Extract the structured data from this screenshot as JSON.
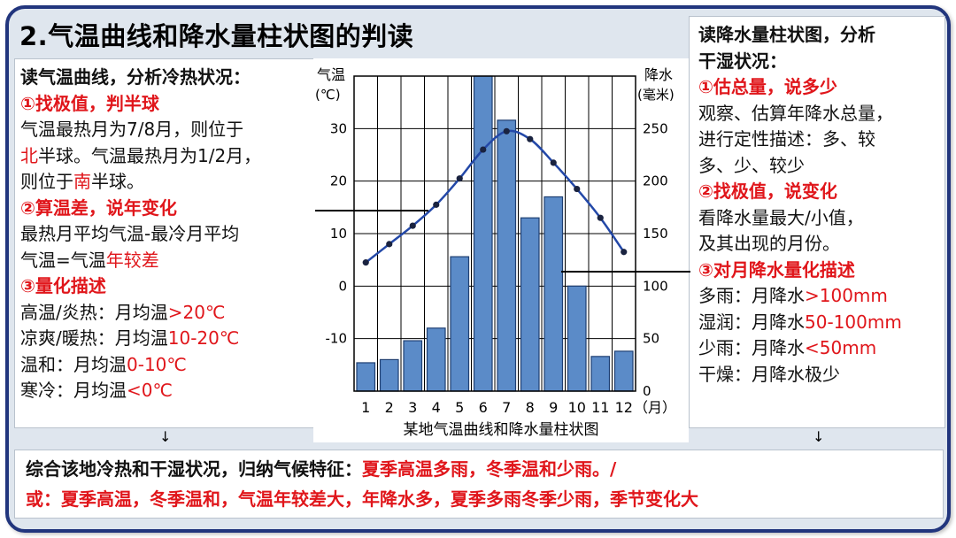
{
  "title": "2.气温曲线和降水量柱状图的判读",
  "left": {
    "heading": "读气温曲线，分析冷热状况：",
    "step1": "①找极值，判半球",
    "l1": "气温最热月为7/8月，则位于",
    "l2a": "北",
    "l2b": "半球。气温最热月为1/2月，",
    "l3a": "则位于",
    "l3b": "南",
    "l3c": "半球。",
    "step2": "②算温差，说年变化",
    "l4": "最热月平均气温-最冷月平均",
    "l5a": "气温=气温",
    "l5b": "年较差",
    "step3": "③量化描述",
    "l6a": "高温/炎热：月均温",
    "l6b": ">20℃",
    "l7a": "凉爽/暖热：月均温",
    "l7b": "10-20℃",
    "l8a": "温和：月均温",
    "l8b": "0-10℃",
    "l9a": "寒冷：月均温",
    "l9b": "<0℃"
  },
  "right": {
    "heading1": "读降水量柱状图，分析",
    "heading2": "干湿状况：",
    "step1": "①估总量，说多少",
    "r1": "观察、估算年降水总量，",
    "r2": "进行定性描述：多、较",
    "r3": "多、少、较少",
    "step2": "②找极值，说变化",
    "r4": "看降水量最大/小值，",
    "r5": "及其出现的月份。",
    "step3": "③对月降水量化描述",
    "r6a": "多雨：月降水",
    "r6b": ">100mm",
    "r7a": "湿润：月降水",
    "r7b": "50-100mm",
    "r8a": "少雨：月降水",
    "r8b": "<50mm",
    "r9": "干燥：月降水极少"
  },
  "bottom": {
    "l1a": "综合该地冷热和干湿状况，归纳气候特征：",
    "l1b": "夏季高温多雨，冬季温和少雨。/",
    "l2": "或：夏季高温，冬季温和，气温年较差大，年降水多，夏季多雨冬季少雨，季节变化大"
  },
  "arrows": {
    "down": "↓"
  },
  "colors": {
    "bar": "#5b8bc8",
    "bar_stroke": "#1f3f72",
    "line": "#2348a8",
    "red": "#e0161b",
    "border": "#21357d"
  },
  "chart_data": {
    "type": "bar+line",
    "title": "某地气温曲线和降水量柱状图",
    "categories": [
      "1",
      "2",
      "3",
      "4",
      "5",
      "6",
      "7",
      "8",
      "9",
      "10",
      "11",
      "12"
    ],
    "x_unit": "（月）",
    "left_axis_label_1": "气温",
    "left_axis_label_2": "(℃)",
    "right_axis_label_1": "降水",
    "right_axis_label_2": "(毫米)",
    "temp_ticks": [
      "30",
      "20",
      "10",
      "0",
      "-10"
    ],
    "temp_tick_values": [
      30,
      20,
      10,
      0,
      -10
    ],
    "precip_ticks": [
      "250",
      "200",
      "150",
      "100",
      "50",
      "0"
    ],
    "precip_tick_values": [
      250,
      200,
      150,
      100,
      50,
      0
    ],
    "ylim_temp": [
      -20,
      40
    ],
    "ylim_precip": [
      0,
      300
    ],
    "temperature": [
      4.5,
      8,
      11.5,
      15.5,
      20.5,
      26,
      29.5,
      28,
      23.5,
      18.5,
      13,
      6.5
    ],
    "precipitation": [
      27,
      30,
      48,
      60,
      128,
      300,
      258,
      165,
      185,
      100,
      33,
      38
    ]
  }
}
